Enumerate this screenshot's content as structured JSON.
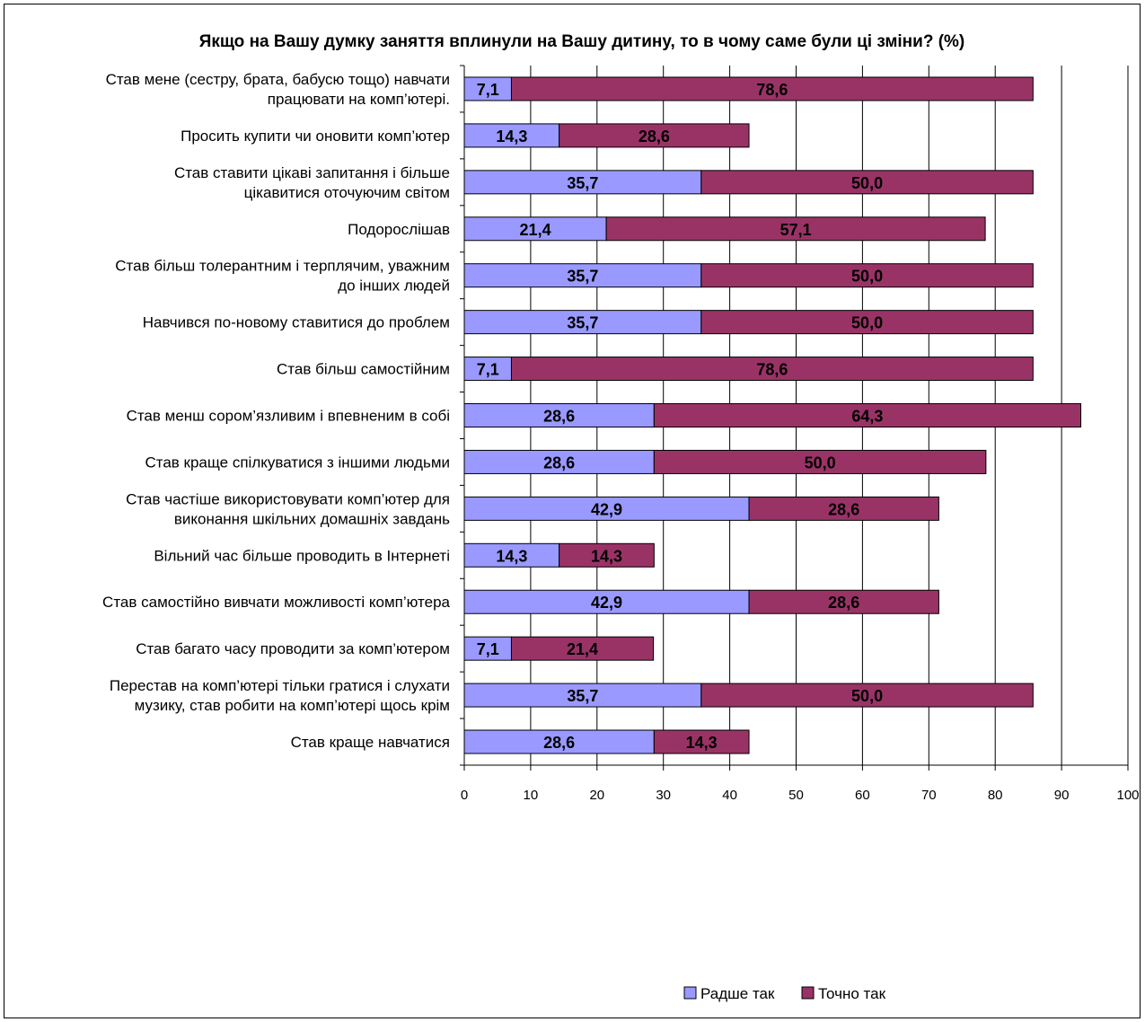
{
  "chart_data": {
    "type": "bar",
    "orientation": "horizontal",
    "stacked": true,
    "title": "Якщо на Вашу думку заняття вплинули на Вашу дитину, то  в чому саме були ці зміни? (%)",
    "categories": [
      [
        "Став мене (сестру, брата, бабусю тощо) навчати",
        "працювати на комп’ютері."
      ],
      [
        "Просить купити чи  оновити комп’ютер"
      ],
      [
        "Став ставити цікаві запитання  і більше",
        "цікавитися оточуючим світом"
      ],
      [
        "Подорослішав"
      ],
      [
        "Став  більш толерантним і терплячим, уважним",
        "до інших людей"
      ],
      [
        "Навчився по-новому ставитися до проблем"
      ],
      [
        "Став більш самостійним"
      ],
      [
        "Став менш  сором’язливим і впевненим в собі"
      ],
      [
        "Став краще спілкуватися з іншими людьми"
      ],
      [
        "Став частіше використовувати комп’ютер для",
        "виконання шкільних домашніх завдань"
      ],
      [
        "Вільний  час більше проводить в Інтернеті"
      ],
      [
        "Став самостійно вивчати можливості комп’ютера"
      ],
      [
        "Став багато часу проводити за  комп’ютером"
      ],
      [
        "Перестав на комп’ютері тільки гратися і слухати",
        "музику, став робити на  комп’ютері щось крім"
      ],
      [
        "Став краще навчатися"
      ]
    ],
    "series": [
      {
        "name": "Радше так",
        "color": "#9999ff",
        "values": [
          7.1,
          14.3,
          35.7,
          21.4,
          35.7,
          35.7,
          7.1,
          28.6,
          28.6,
          42.9,
          14.3,
          42.9,
          7.1,
          35.7,
          28.6
        ],
        "labels": [
          "7,1",
          "14,3",
          "35,7",
          "21,4",
          "35,7",
          "35,7",
          "7,1",
          "28,6",
          "28,6",
          "42,9",
          "14,3",
          "42,9",
          "7,1",
          "35,7",
          "28,6"
        ]
      },
      {
        "name": "Точно так",
        "color": "#993366",
        "values": [
          78.6,
          28.6,
          50.0,
          57.1,
          50.0,
          50.0,
          78.6,
          64.3,
          50.0,
          28.6,
          14.3,
          28.6,
          21.4,
          50.0,
          14.3
        ],
        "labels": [
          "78,6",
          "28,6",
          "50,0",
          "57,1",
          "50,0",
          "50,0",
          "78,6",
          "64,3",
          "50,0",
          "28,6",
          "14,3",
          "28,6",
          "21,4",
          "50,0",
          "14,3"
        ]
      }
    ],
    "xlim": [
      0,
      100
    ],
    "xticks": [
      "0",
      "10",
      "20",
      "30",
      "40",
      "50",
      "60",
      "70",
      "80",
      "90",
      "100"
    ],
    "grid": "vertical",
    "legend_position": "bottom"
  }
}
